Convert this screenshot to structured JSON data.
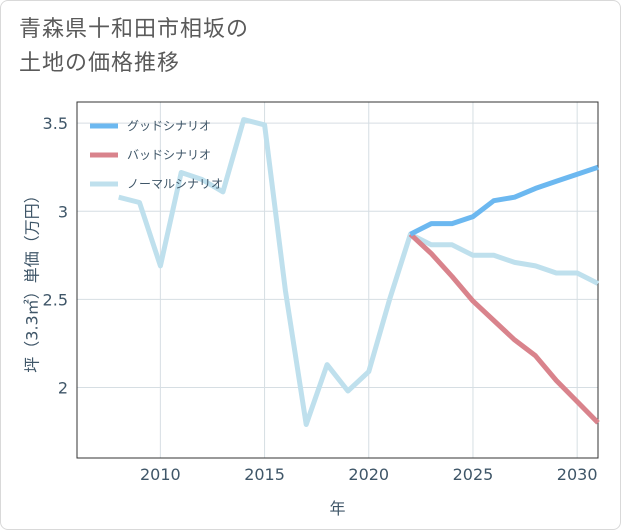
{
  "chart_data": {
    "type": "line",
    "title_lines": [
      "青森県十和田市相坂の",
      "土地の価格推移"
    ],
    "xlabel": "年",
    "ylabel": "坪（3.3㎡）単価（万円）",
    "xlim": [
      2006,
      2031
    ],
    "ylim": [
      1.6,
      3.62
    ],
    "x_ticks": [
      2010,
      2015,
      2020,
      2025,
      2030
    ],
    "y_ticks": [
      2,
      2.5,
      3,
      3.5
    ],
    "x_tick_labels": [
      "2010",
      "2015",
      "2020",
      "2025",
      "2030"
    ],
    "y_tick_labels": [
      "2",
      "2.5",
      "3",
      "3.5"
    ],
    "grid": true,
    "legend_position": "top-left",
    "series": [
      {
        "name": "グッドシナリオ",
        "color": "#6cb8f0",
        "x": [
          2022,
          2023,
          2024,
          2025,
          2026,
          2027,
          2028,
          2029,
          2030,
          2031
        ],
        "y": [
          2.87,
          2.93,
          2.93,
          2.97,
          3.06,
          3.08,
          3.13,
          3.17,
          3.21,
          3.25
        ]
      },
      {
        "name": "バッドシナリオ",
        "color": "#d9838c",
        "x": [
          2022,
          2023,
          2024,
          2025,
          2026,
          2027,
          2028,
          2029,
          2030,
          2031
        ],
        "y": [
          2.87,
          2.76,
          2.63,
          2.49,
          2.38,
          2.27,
          2.18,
          2.04,
          1.92,
          1.8
        ]
      },
      {
        "name": "ノーマルシナリオ",
        "color": "#bfe0ed",
        "x": [
          2008,
          2009,
          2010,
          2011,
          2012,
          2013,
          2014,
          2015,
          2016,
          2017,
          2018,
          2019,
          2020,
          2021,
          2022,
          2023,
          2024,
          2025,
          2026,
          2027,
          2028,
          2029,
          2030,
          2031
        ],
        "y": [
          3.08,
          3.05,
          2.69,
          3.22,
          3.18,
          3.11,
          3.52,
          3.49,
          2.55,
          1.79,
          2.13,
          1.98,
          2.09,
          2.5,
          2.87,
          2.81,
          2.81,
          2.75,
          2.75,
          2.71,
          2.69,
          2.65,
          2.65,
          2.59
        ]
      }
    ]
  }
}
